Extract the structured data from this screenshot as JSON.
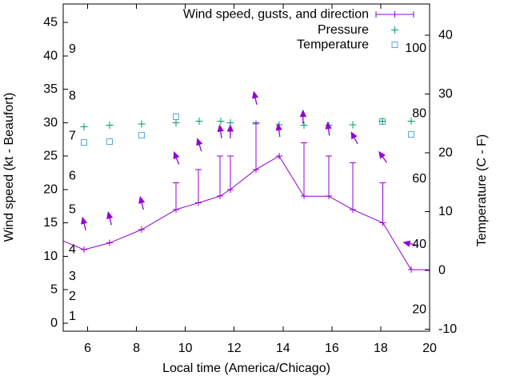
{
  "app": {
    "background": "#ffffff",
    "axis_color": "#000000"
  },
  "chart_data": {
    "type": "line",
    "legend": [
      {
        "label": "Wind speed, gusts, and direction",
        "color": "#9400d3",
        "marker": "errorline-plus"
      },
      {
        "label": "Pressure",
        "color": "#009872",
        "marker": "plus"
      },
      {
        "label": "Temperature",
        "color": "#56a8e0",
        "marker": "open-square"
      }
    ],
    "xlabel": "Local time (America/Chicago)",
    "ylabel_left": "Wind speed (kt - Beaufort)",
    "ylabel_right": "Temperature (C - F)",
    "xlim": [
      5,
      20
    ],
    "x_ticks": [
      6,
      8,
      10,
      12,
      14,
      16,
      18,
      20
    ],
    "ylim_left_kt": [
      -1.2,
      47.75
    ],
    "y_ticks_left_kt": [
      0,
      5,
      10,
      15,
      20,
      25,
      30,
      35,
      40,
      45
    ],
    "beaufort_labels": [
      {
        "b": "1",
        "kt": 1
      },
      {
        "b": "2",
        "kt": 4
      },
      {
        "b": "3",
        "kt": 7
      },
      {
        "b": "4",
        "kt": 11
      },
      {
        "b": "5",
        "kt": 17
      },
      {
        "b": "6",
        "kt": 22
      },
      {
        "b": "7",
        "kt": 28
      },
      {
        "b": "8",
        "kt": 34
      },
      {
        "b": "9",
        "kt": 41
      }
    ],
    "ylim_right_c": [
      -10.34,
      45.31
    ],
    "y_ticks_right_c": [
      -10,
      0,
      10,
      20,
      30,
      40
    ],
    "fahrenheit_labels": [
      {
        "f": "20",
        "c": -6.67
      },
      {
        "f": "40",
        "c": 4.44
      },
      {
        "f": "60",
        "c": 15.56
      },
      {
        "f": "80",
        "c": 26.67
      },
      {
        "f": "100",
        "c": 37.78
      }
    ],
    "wind": {
      "color": "#9400d3",
      "edge_points": {
        "start": {
          "t": 5.0,
          "speed_kt": 12.3
        },
        "end": {
          "t": 20.0,
          "speed_kt": 8
        }
      },
      "observations": [
        {
          "t": 5.85,
          "speed_kt": 11,
          "gust_kt": null,
          "arrow": {
            "t": 5.82,
            "kt": 15.4,
            "angle_deg": -14
          }
        },
        {
          "t": 6.9,
          "speed_kt": 12,
          "gust_kt": null,
          "arrow": {
            "t": 6.87,
            "kt": 16.2,
            "angle_deg": -14
          }
        },
        {
          "t": 8.21,
          "speed_kt": 14,
          "gust_kt": null,
          "arrow": {
            "t": 8.18,
            "kt": 18.5,
            "angle_deg": -14
          }
        },
        {
          "t": 9.62,
          "speed_kt": 17,
          "gust_kt": 21,
          "arrow": {
            "t": 9.58,
            "kt": 25.2,
            "angle_deg": -22
          }
        },
        {
          "t": 10.53,
          "speed_kt": 18,
          "gust_kt": 23,
          "arrow": {
            "t": 10.53,
            "kt": 27.2,
            "angle_deg": -18
          }
        },
        {
          "t": 11.42,
          "speed_kt": 19,
          "gust_kt": 25,
          "arrow": {
            "t": 11.42,
            "kt": 29.2,
            "angle_deg": -9
          }
        },
        {
          "t": 11.84,
          "speed_kt": 20,
          "gust_kt": 25,
          "arrow": {
            "t": 11.84,
            "kt": 29.2,
            "angle_deg": 0
          }
        },
        {
          "t": 12.89,
          "speed_kt": 23,
          "gust_kt": 30,
          "arrow": {
            "t": 12.83,
            "kt": 34.2,
            "angle_deg": -13
          }
        },
        {
          "t": 13.84,
          "speed_kt": 25,
          "gust_kt": null,
          "arrow": {
            "t": 13.81,
            "kt": 29.4,
            "angle_deg": -8
          }
        },
        {
          "t": 14.85,
          "speed_kt": 19,
          "gust_kt": 27,
          "arrow": {
            "t": 14.82,
            "kt": 31.4,
            "angle_deg": 0
          }
        },
        {
          "t": 15.87,
          "speed_kt": 19,
          "gust_kt": 25,
          "arrow": {
            "t": 15.84,
            "kt": 29.6,
            "angle_deg": -8
          }
        },
        {
          "t": 16.85,
          "speed_kt": 17,
          "gust_kt": 24,
          "arrow": {
            "t": 16.85,
            "kt": 28.2,
            "angle_deg": -28
          }
        },
        {
          "t": 18.09,
          "speed_kt": 15,
          "gust_kt": 21,
          "arrow": {
            "t": 18.0,
            "kt": 25.3,
            "angle_deg": -35
          }
        },
        {
          "t": 19.24,
          "speed_kt": 8,
          "gust_kt": null,
          "arrow": {
            "t": 19.05,
            "kt": 12.0,
            "angle_deg": -78
          }
        }
      ]
    },
    "pressure": {
      "color": "#009872",
      "note": "no visible pressure scale; marker heights given in left-axis (kt) units",
      "points": [
        {
          "t": 5.85,
          "y_kt": 29.4
        },
        {
          "t": 6.9,
          "y_kt": 29.6
        },
        {
          "t": 8.21,
          "y_kt": 29.8
        },
        {
          "t": 9.62,
          "y_kt": 30.0
        },
        {
          "t": 10.56,
          "y_kt": 30.2
        },
        {
          "t": 11.45,
          "y_kt": 30.2
        },
        {
          "t": 11.84,
          "y_kt": 30.0
        },
        {
          "t": 12.89,
          "y_kt": 29.8
        },
        {
          "t": 13.84,
          "y_kt": 29.7
        },
        {
          "t": 14.85,
          "y_kt": 29.6
        },
        {
          "t": 15.87,
          "y_kt": 29.6
        },
        {
          "t": 16.85,
          "y_kt": 29.7
        },
        {
          "t": 18.06,
          "y_kt": 30.2
        },
        {
          "t": 19.24,
          "y_kt": 30.2
        }
      ]
    },
    "temperature": {
      "color": "#56a8e0",
      "points_c": [
        {
          "t": 5.85,
          "c": 21.8
        },
        {
          "t": 6.9,
          "c": 21.9
        },
        {
          "t": 8.21,
          "c": 23.0
        },
        {
          "t": 9.62,
          "c": 26.1
        },
        {
          "t": 18.06,
          "c": 25.3
        },
        {
          "t": 19.24,
          "c": 23.1
        }
      ]
    }
  }
}
